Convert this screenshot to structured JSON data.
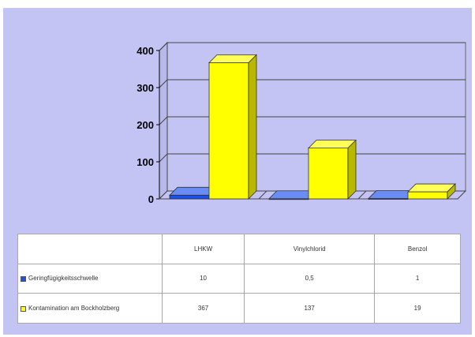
{
  "colors": {
    "background": "#c4c4f4",
    "series_blue": "#1a4ff0",
    "series_yellow": "#ffff00"
  },
  "chart_data": {
    "type": "bar",
    "categories": [
      "LHKW",
      "Vinylchlorid",
      "Benzol"
    ],
    "series": [
      {
        "name": "Geringfügigkeitsschwelle",
        "values": [
          10,
          0.5,
          1
        ],
        "display": [
          "10",
          "0,5",
          "1"
        ]
      },
      {
        "name": "Kontamination am Bockholzberg",
        "values": [
          367,
          137,
          19
        ],
        "display": [
          "367",
          "137",
          "19"
        ]
      }
    ],
    "ylim": [
      0,
      400
    ],
    "yticks": [
      0,
      100,
      200,
      300,
      400
    ],
    "grid": true,
    "legend": "bottom-table"
  }
}
